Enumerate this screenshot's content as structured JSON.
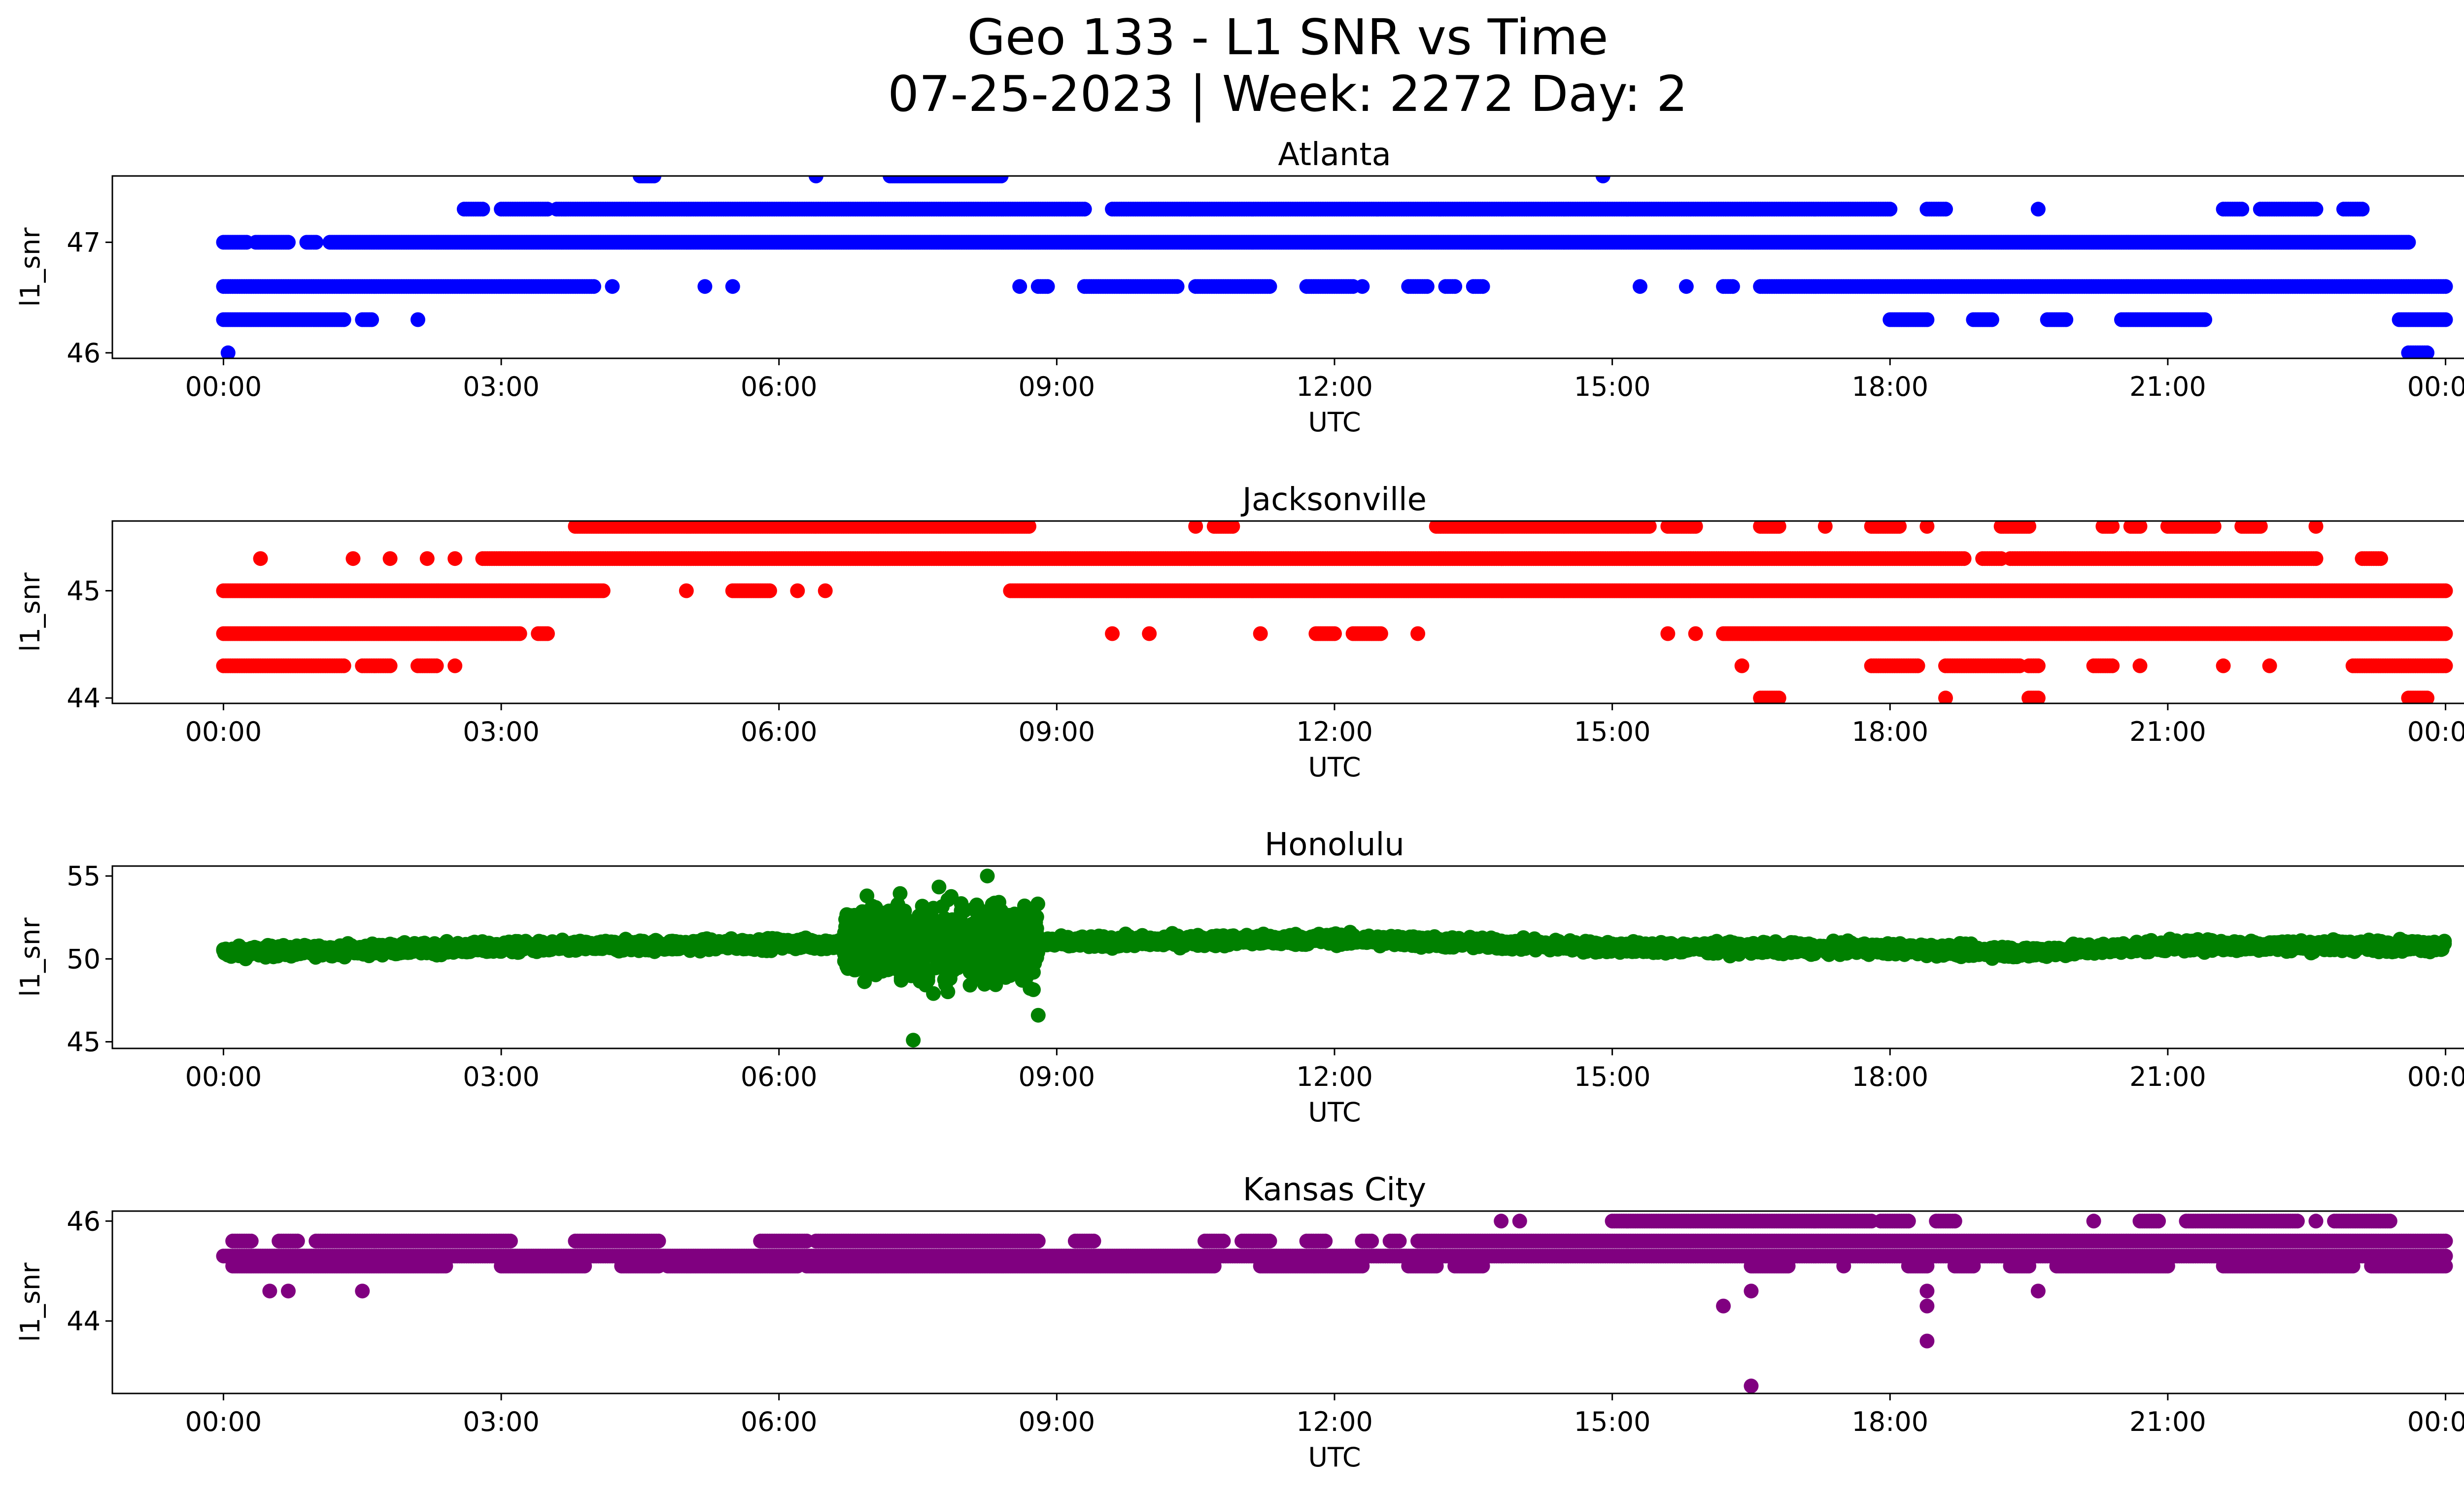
{
  "figure": {
    "title_line1": "Geo 133 - L1 SNR vs Time",
    "title_line2": "07-25-2023 | Week: 2272 Day: 2"
  },
  "chart_data": [
    {
      "type": "scatter",
      "title": "Atlanta",
      "xlabel": "UTC",
      "ylabel": "l1_snr",
      "color": "#0000ff",
      "xlim_hours": [
        -1.2,
        25.2
      ],
      "ylim": [
        45.95,
        47.6
      ],
      "xticks": [
        "00:00",
        "03:00",
        "06:00",
        "09:00",
        "12:00",
        "15:00",
        "18:00",
        "21:00",
        "00:00"
      ],
      "xtick_hours": [
        0,
        3,
        6,
        9,
        12,
        15,
        18,
        21,
        24
      ],
      "yticks": [
        46,
        47
      ],
      "levels": [
        {
          "y": 47.6,
          "ranges": [
            [
              4.5,
              4.65
            ],
            [
              6.4,
              6.4
            ],
            [
              7.2,
              8.4
            ],
            [
              14.9,
              14.9
            ]
          ]
        },
        {
          "y": 47.3,
          "ranges": [
            [
              2.6,
              2.8
            ],
            [
              3.0,
              3.5
            ],
            [
              3.6,
              9.3
            ],
            [
              9.6,
              18.0
            ],
            [
              18.4,
              18.6
            ],
            [
              19.6,
              19.6
            ],
            [
              21.6,
              21.8
            ],
            [
              22.0,
              22.6
            ],
            [
              22.9,
              23.1
            ]
          ]
        },
        {
          "y": 47.0,
          "ranges": [
            [
              0.0,
              0.25
            ],
            [
              0.35,
              0.7
            ],
            [
              0.9,
              1.0
            ],
            [
              1.15,
              23.6
            ]
          ]
        },
        {
          "y": 46.6,
          "ranges": [
            [
              0.0,
              4.0
            ],
            [
              4.2,
              4.2
            ],
            [
              5.2,
              5.2
            ],
            [
              5.5,
              5.5
            ],
            [
              8.6,
              8.6
            ],
            [
              8.8,
              8.9
            ],
            [
              9.3,
              10.3
            ],
            [
              10.5,
              11.3
            ],
            [
              11.7,
              12.2
            ],
            [
              12.3,
              12.3
            ],
            [
              12.8,
              13.0
            ],
            [
              13.2,
              13.3
            ],
            [
              13.5,
              13.6
            ],
            [
              15.3,
              15.3
            ],
            [
              15.8,
              15.8
            ],
            [
              16.2,
              16.3
            ],
            [
              16.6,
              24.0
            ]
          ]
        },
        {
          "y": 46.3,
          "ranges": [
            [
              0.0,
              1.3
            ],
            [
              1.5,
              1.6
            ],
            [
              2.1,
              2.1
            ],
            [
              18.0,
              18.4
            ],
            [
              18.9,
              19.1
            ],
            [
              19.7,
              19.9
            ],
            [
              20.5,
              21.4
            ],
            [
              23.5,
              24.0
            ]
          ]
        },
        {
          "y": 46.0,
          "ranges": [
            [
              0.05,
              0.05
            ],
            [
              23.6,
              23.8
            ]
          ]
        }
      ]
    },
    {
      "type": "scatter",
      "title": "Jacksonville",
      "xlabel": "UTC",
      "ylabel": "l1_snr",
      "color": "#ff0000",
      "xlim_hours": [
        -1.2,
        25.2
      ],
      "ylim": [
        43.95,
        45.65
      ],
      "xticks": [
        "00:00",
        "03:00",
        "06:00",
        "09:00",
        "12:00",
        "15:00",
        "18:00",
        "21:00",
        "00:00"
      ],
      "xtick_hours": [
        0,
        3,
        6,
        9,
        12,
        15,
        18,
        21,
        24
      ],
      "yticks": [
        44,
        45
      ],
      "levels": [
        {
          "y": 45.6,
          "ranges": [
            [
              3.8,
              8.7
            ],
            [
              10.5,
              10.5
            ],
            [
              10.7,
              10.9
            ],
            [
              13.1,
              15.4
            ],
            [
              15.6,
              15.9
            ],
            [
              16.6,
              16.8
            ],
            [
              17.3,
              17.3
            ],
            [
              17.8,
              18.1
            ],
            [
              18.4,
              18.4
            ],
            [
              19.2,
              19.5
            ],
            [
              20.3,
              20.4
            ],
            [
              20.6,
              20.7
            ],
            [
              21.0,
              21.5
            ],
            [
              21.8,
              22.0
            ],
            [
              22.6,
              22.6
            ]
          ]
        },
        {
          "y": 45.3,
          "ranges": [
            [
              0.4,
              0.4
            ],
            [
              1.4,
              1.4
            ],
            [
              1.8,
              1.8
            ],
            [
              2.2,
              2.2
            ],
            [
              2.5,
              2.5
            ],
            [
              2.8,
              18.8
            ],
            [
              19.0,
              19.2
            ],
            [
              19.3,
              22.6
            ],
            [
              23.1,
              23.3
            ]
          ]
        },
        {
          "y": 45.0,
          "ranges": [
            [
              0.0,
              4.1
            ],
            [
              5.0,
              5.0
            ],
            [
              5.5,
              5.9
            ],
            [
              6.2,
              6.2
            ],
            [
              6.5,
              6.5
            ],
            [
              8.5,
              24.0
            ]
          ]
        },
        {
          "y": 44.6,
          "ranges": [
            [
              0.0,
              3.2
            ],
            [
              3.4,
              3.5
            ],
            [
              9.6,
              9.6
            ],
            [
              10.0,
              10.0
            ],
            [
              11.2,
              11.2
            ],
            [
              11.8,
              12.0
            ],
            [
              12.2,
              12.5
            ],
            [
              12.9,
              12.9
            ],
            [
              15.6,
              15.6
            ],
            [
              15.9,
              15.9
            ],
            [
              16.2,
              24.0
            ]
          ]
        },
        {
          "y": 44.3,
          "ranges": [
            [
              0.0,
              1.3
            ],
            [
              1.5,
              1.8
            ],
            [
              2.1,
              2.3
            ],
            [
              2.5,
              2.5
            ],
            [
              16.4,
              16.4
            ],
            [
              17.8,
              18.3
            ],
            [
              18.6,
              19.4
            ],
            [
              19.5,
              19.6
            ],
            [
              20.2,
              20.4
            ],
            [
              20.7,
              20.7
            ],
            [
              21.6,
              21.6
            ],
            [
              22.1,
              22.1
            ],
            [
              23.0,
              24.0
            ]
          ]
        },
        {
          "y": 44.0,
          "ranges": [
            [
              16.6,
              16.8
            ],
            [
              18.6,
              18.6
            ],
            [
              19.5,
              19.6
            ],
            [
              23.6,
              23.8
            ]
          ]
        }
      ]
    },
    {
      "type": "scatter",
      "title": "Honolulu",
      "xlabel": "UTC",
      "ylabel": "l1_snr",
      "color": "#008000",
      "xlim_hours": [
        -1.2,
        25.2
      ],
      "ylim": [
        44.6,
        55.6
      ],
      "xticks": [
        "00:00",
        "03:00",
        "06:00",
        "09:00",
        "12:00",
        "15:00",
        "18:00",
        "21:00",
        "00:00"
      ],
      "xtick_hours": [
        0,
        3,
        6,
        9,
        12,
        15,
        18,
        21,
        24
      ],
      "yticks": [
        45,
        50,
        55
      ],
      "trend": [
        [
          0.0,
          50.4
        ],
        [
          3.0,
          50.7
        ],
        [
          6.0,
          50.9
        ],
        [
          9.0,
          51.0
        ],
        [
          12.0,
          51.2
        ],
        [
          15.0,
          50.7
        ],
        [
          18.0,
          50.6
        ],
        [
          19.5,
          50.4
        ],
        [
          21.0,
          50.8
        ],
        [
          24.0,
          50.8
        ]
      ],
      "noise_window_hours": [
        6.7,
        8.8
      ],
      "outliers": [
        {
          "x": 8.25,
          "y": 55.0
        },
        {
          "x": 7.45,
          "y": 45.1
        },
        {
          "x": 8.8,
          "y": 46.6
        },
        {
          "x": 6.95,
          "y": 53.8
        }
      ]
    },
    {
      "type": "scatter",
      "title": "Kansas City",
      "xlabel": "UTC",
      "ylabel": "l1_snr",
      "color": "#800080",
      "xlim_hours": [
        -1.2,
        25.2
      ],
      "ylim": [
        42.55,
        46.2
      ],
      "xticks": [
        "00:00",
        "03:00",
        "06:00",
        "09:00",
        "12:00",
        "15:00",
        "18:00",
        "21:00",
        "00:00"
      ],
      "xtick_hours": [
        0,
        3,
        6,
        9,
        12,
        15,
        18,
        21,
        24
      ],
      "yticks": [
        44,
        46
      ],
      "levels": [
        {
          "y": 46.0,
          "ranges": [
            [
              13.8,
              13.8
            ],
            [
              14.0,
              14.0
            ],
            [
              15.0,
              17.8
            ],
            [
              17.9,
              18.2
            ],
            [
              18.5,
              18.7
            ],
            [
              20.2,
              20.2
            ],
            [
              20.7,
              20.9
            ],
            [
              21.2,
              22.4
            ],
            [
              22.6,
              22.6
            ],
            [
              22.8,
              23.4
            ]
          ]
        },
        {
          "y": 45.6,
          "ranges": [
            [
              0.1,
              0.3
            ],
            [
              0.6,
              0.8
            ],
            [
              1.0,
              3.1
            ],
            [
              3.8,
              4.7
            ],
            [
              5.8,
              6.3
            ],
            [
              6.4,
              8.8
            ],
            [
              9.2,
              9.4
            ],
            [
              10.6,
              10.8
            ],
            [
              11.0,
              11.3
            ],
            [
              11.7,
              11.9
            ],
            [
              12.3,
              12.4
            ],
            [
              12.6,
              12.7
            ],
            [
              12.9,
              24.0
            ]
          ]
        },
        {
          "y": 45.3,
          "ranges": [
            [
              0.0,
              24.0
            ]
          ]
        },
        {
          "y": 45.1,
          "ranges": [
            [
              0.1,
              2.4
            ],
            [
              3.0,
              3.9
            ],
            [
              4.3,
              4.7
            ],
            [
              4.8,
              6.2
            ],
            [
              6.3,
              10.7
            ],
            [
              11.2,
              12.3
            ],
            [
              12.8,
              13.1
            ],
            [
              13.3,
              13.6
            ],
            [
              16.5,
              16.9
            ],
            [
              17.5,
              17.5
            ],
            [
              18.2,
              18.4
            ],
            [
              18.7,
              18.9
            ],
            [
              19.3,
              19.5
            ],
            [
              19.8,
              21.0
            ],
            [
              21.6,
              23.0
            ],
            [
              23.2,
              24.0
            ]
          ]
        },
        {
          "y": 44.6,
          "ranges": [
            [
              0.5,
              0.5
            ],
            [
              0.7,
              0.7
            ],
            [
              1.5,
              1.5
            ],
            [
              16.5,
              16.5
            ],
            [
              18.4,
              18.4
            ],
            [
              19.6,
              19.6
            ]
          ]
        },
        {
          "y": 44.3,
          "ranges": [
            [
              16.2,
              16.2
            ],
            [
              18.4,
              18.4
            ]
          ]
        },
        {
          "y": 43.6,
          "ranges": [
            [
              18.4,
              18.4
            ]
          ]
        },
        {
          "y": 42.7,
          "ranges": [
            [
              16.5,
              16.5
            ]
          ]
        }
      ]
    }
  ]
}
